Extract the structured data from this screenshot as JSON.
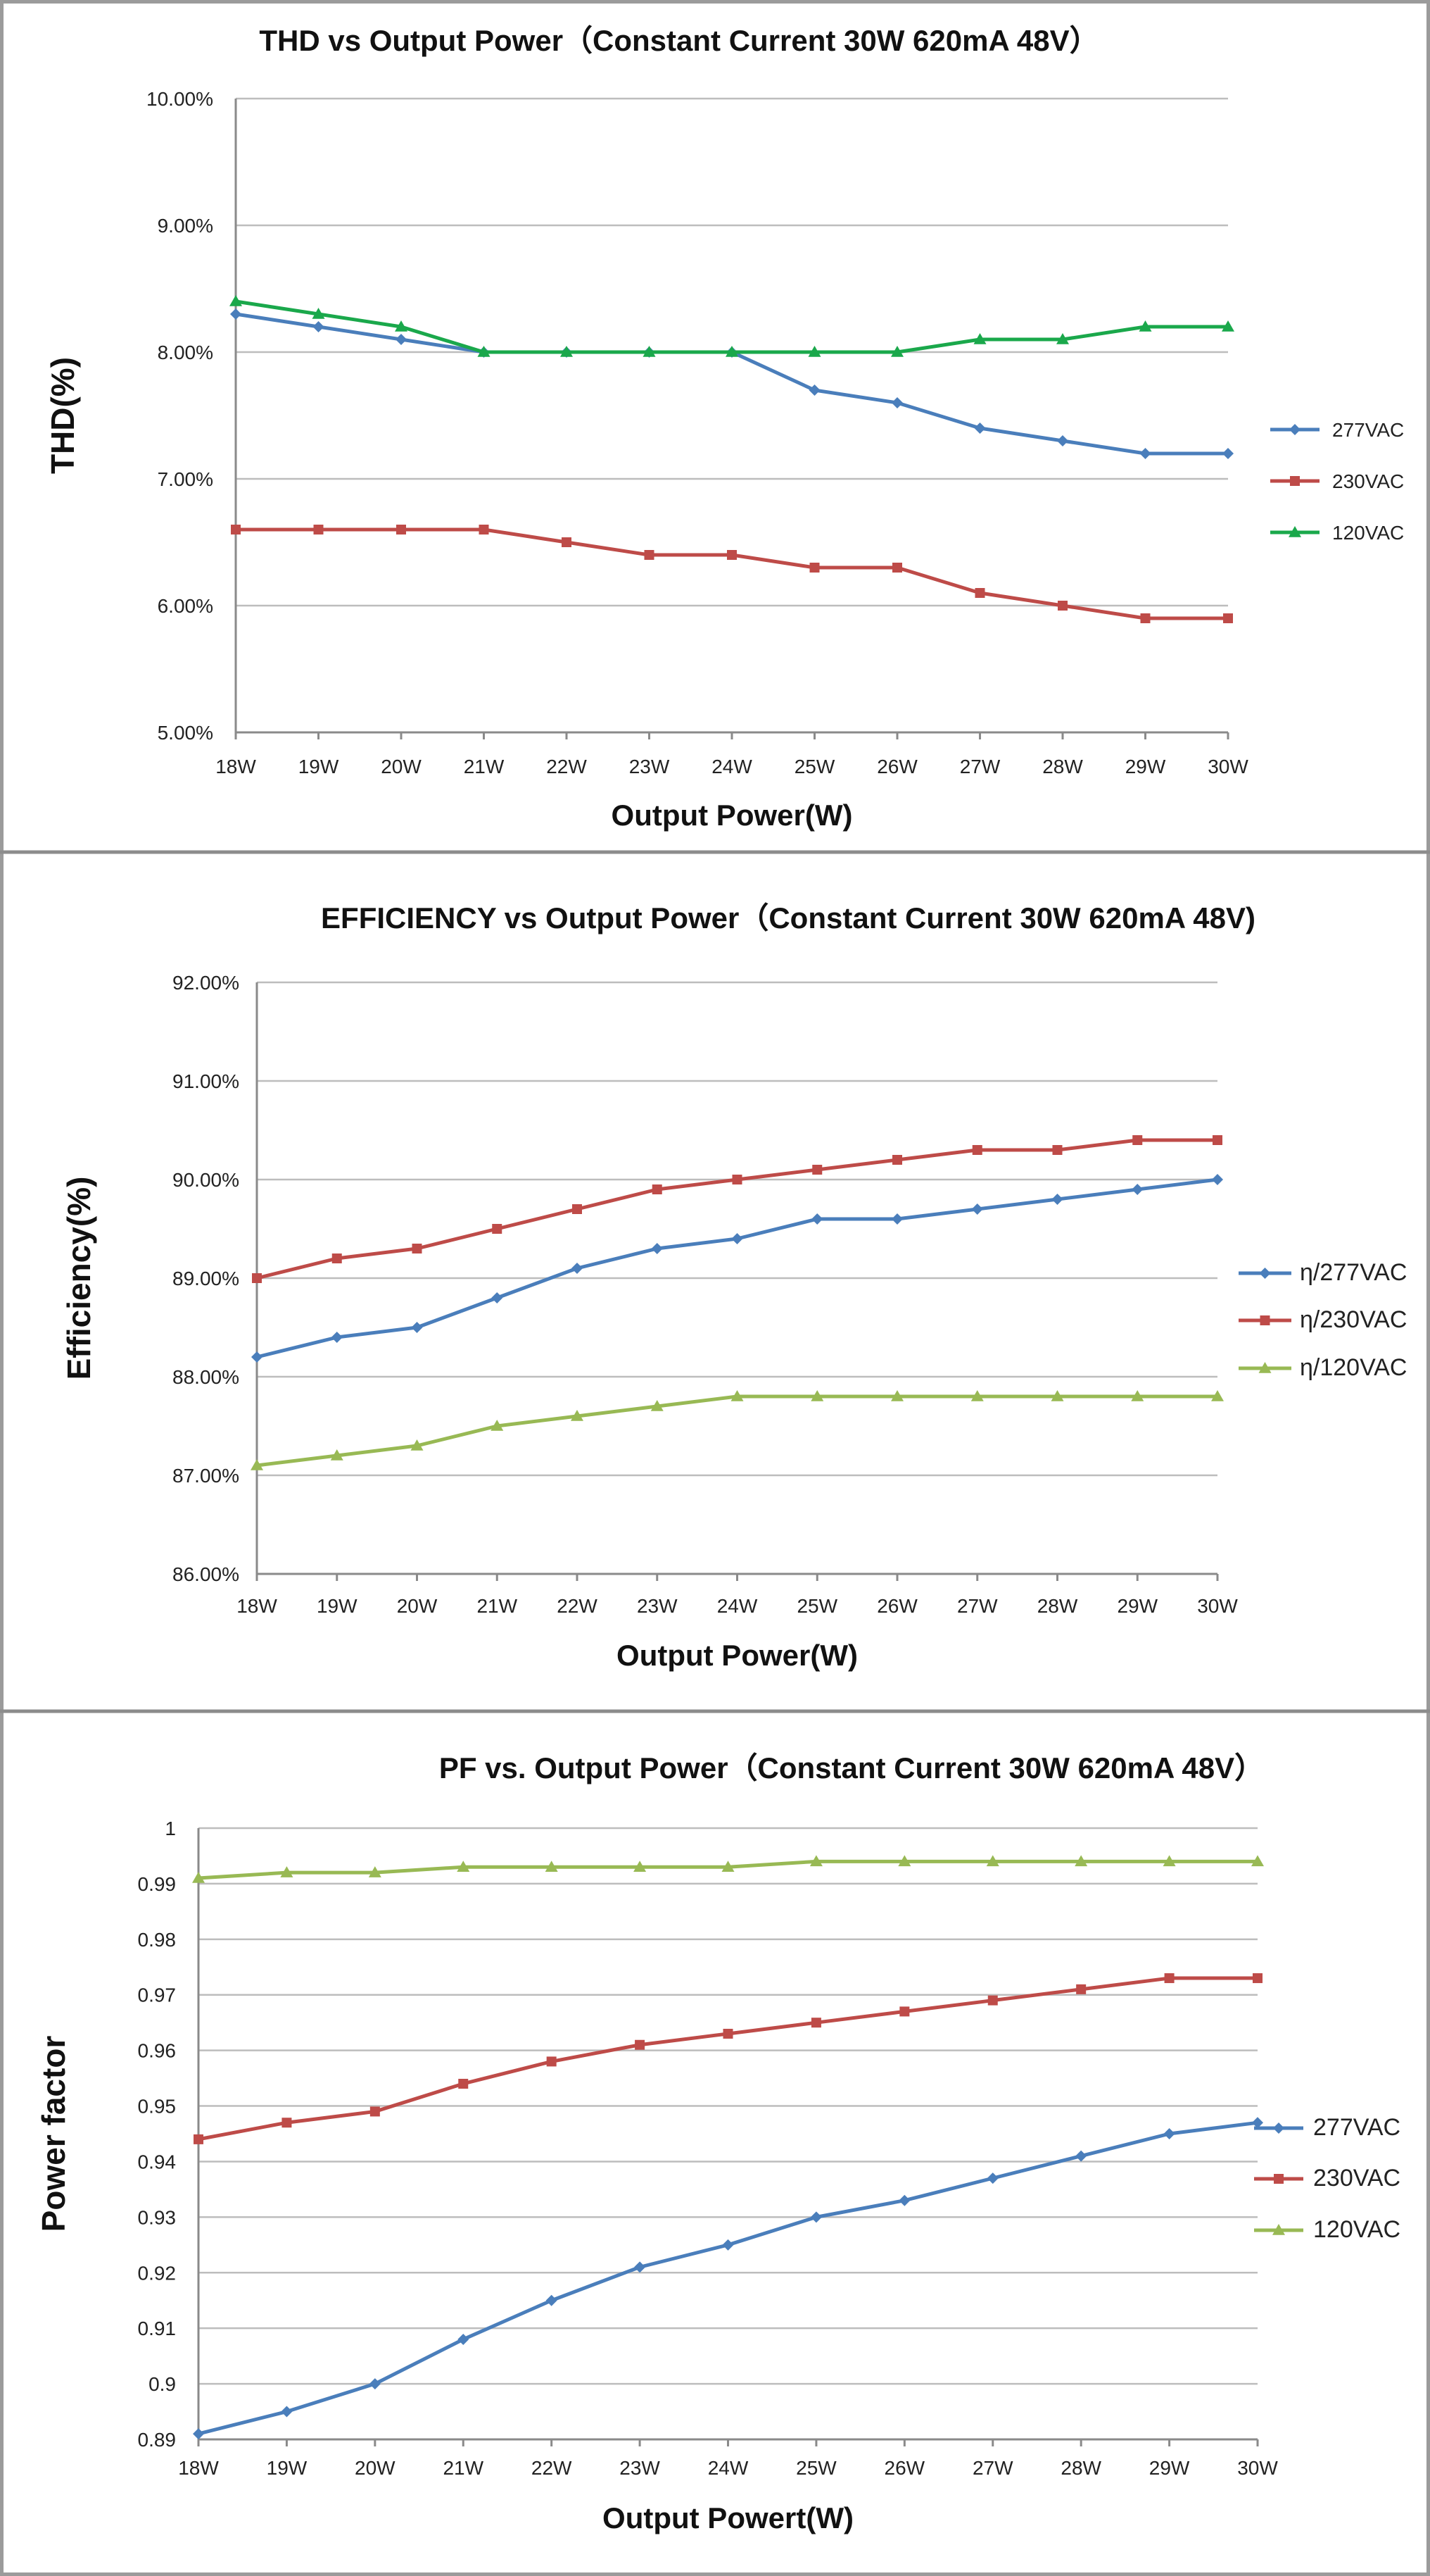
{
  "colors": {
    "blue": "#4a7ebb",
    "red": "#be4b48",
    "green_thd": "#1aa84b",
    "green": "#98b954"
  },
  "chart_data": [
    {
      "type": "line",
      "title": "THD vs Output Power（Constant Current 30W  620mA 48V）",
      "xlabel": "Output Power(W)",
      "ylabel": "THD(%)",
      "categories": [
        "18W",
        "19W",
        "20W",
        "21W",
        "22W",
        "23W",
        "24W",
        "25W",
        "26W",
        "27W",
        "28W",
        "29W",
        "30W"
      ],
      "y_ticks": [
        "5.00%",
        "6.00%",
        "7.00%",
        "8.00%",
        "9.00%",
        "10.00%"
      ],
      "ylim": [
        5.0,
        10.0
      ],
      "grid": true,
      "legend_position": "right",
      "series": [
        {
          "name": "277VAC",
          "color": "#4a7ebb",
          "marker": "diamond",
          "values": [
            8.3,
            8.2,
            8.1,
            8.0,
            8.0,
            8.0,
            8.0,
            7.7,
            7.6,
            7.4,
            7.3,
            7.2,
            7.2
          ]
        },
        {
          "name": "230VAC",
          "color": "#be4b48",
          "marker": "square",
          "values": [
            6.6,
            6.6,
            6.6,
            6.6,
            6.5,
            6.4,
            6.4,
            6.3,
            6.3,
            6.1,
            6.0,
            5.9,
            5.9
          ]
        },
        {
          "name": "120VAC",
          "color": "#1aa84b",
          "marker": "triangle",
          "values": [
            8.4,
            8.3,
            8.2,
            8.0,
            8.0,
            8.0,
            8.0,
            8.0,
            8.0,
            8.1,
            8.1,
            8.2,
            8.2
          ]
        }
      ]
    },
    {
      "type": "line",
      "title": "EFFICIENCY vs Output Power（Constant Current 30W 620mA 48V)",
      "xlabel": "Output Power(W)",
      "ylabel": "Efficiency(%)",
      "categories": [
        "18W",
        "19W",
        "20W",
        "21W",
        "22W",
        "23W",
        "24W",
        "25W",
        "26W",
        "27W",
        "28W",
        "29W",
        "30W"
      ],
      "y_ticks": [
        "86.00%",
        "87.00%",
        "88.00%",
        "89.00%",
        "90.00%",
        "91.00%",
        "92.00%"
      ],
      "ylim": [
        86.0,
        92.0
      ],
      "grid": true,
      "legend_position": "right",
      "series": [
        {
          "name": "η/277VAC",
          "color": "#4a7ebb",
          "marker": "diamond",
          "values": [
            88.2,
            88.4,
            88.5,
            88.8,
            89.1,
            89.3,
            89.4,
            89.6,
            89.6,
            89.7,
            89.8,
            89.9,
            90.0
          ]
        },
        {
          "name": "η/230VAC",
          "color": "#be4b48",
          "marker": "square",
          "values": [
            89.0,
            89.2,
            89.3,
            89.5,
            89.7,
            89.9,
            90.0,
            90.1,
            90.2,
            90.3,
            90.3,
            90.4,
            90.4
          ]
        },
        {
          "name": "η/120VAC",
          "color": "#98b954",
          "marker": "triangle",
          "values": [
            87.1,
            87.2,
            87.3,
            87.5,
            87.6,
            87.7,
            87.8,
            87.8,
            87.8,
            87.8,
            87.8,
            87.8,
            87.8
          ]
        }
      ]
    },
    {
      "type": "line",
      "title": "PF vs. Output Power（Constant Current 30W 620mA 48V）",
      "xlabel": "Output Powert(W)",
      "ylabel": "Power factor",
      "categories": [
        "18W",
        "19W",
        "20W",
        "21W",
        "22W",
        "23W",
        "24W",
        "25W",
        "26W",
        "27W",
        "28W",
        "29W",
        "30W"
      ],
      "y_ticks": [
        "0.89",
        "0.9",
        "0.91",
        "0.92",
        "0.93",
        "0.94",
        "0.95",
        "0.96",
        "0.97",
        "0.98",
        "0.99",
        "1"
      ],
      "ylim": [
        0.89,
        1.0
      ],
      "grid": true,
      "legend_position": "right",
      "series": [
        {
          "name": "277VAC",
          "color": "#4a7ebb",
          "marker": "diamond",
          "values": [
            0.891,
            0.895,
            0.9,
            0.908,
            0.915,
            0.921,
            0.925,
            0.93,
            0.933,
            0.937,
            0.941,
            0.945,
            0.947
          ]
        },
        {
          "name": "230VAC",
          "color": "#be4b48",
          "marker": "square",
          "values": [
            0.944,
            0.947,
            0.949,
            0.954,
            0.958,
            0.961,
            0.963,
            0.965,
            0.967,
            0.969,
            0.971,
            0.973,
            0.973
          ]
        },
        {
          "name": "120VAC",
          "color": "#98b954",
          "marker": "triangle",
          "values": [
            0.991,
            0.992,
            0.992,
            0.993,
            0.993,
            0.993,
            0.993,
            0.994,
            0.994,
            0.994,
            0.994,
            0.994,
            0.994
          ]
        }
      ]
    }
  ]
}
